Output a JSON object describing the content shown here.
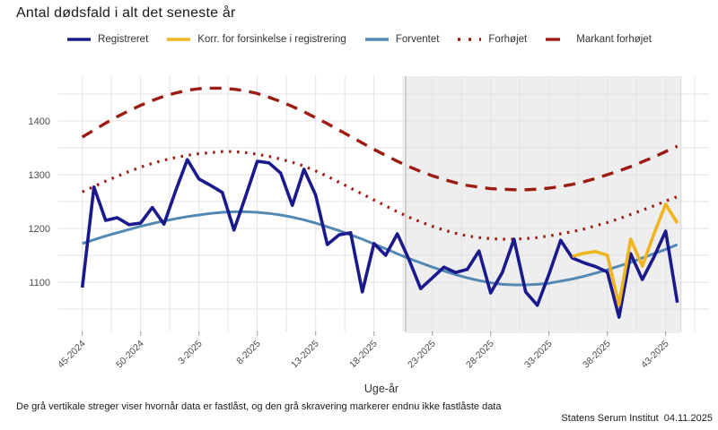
{
  "header": {
    "title": "Antal dødsfald i alt det seneste år"
  },
  "legend": {
    "items": [
      {
        "label": "Registreret",
        "color": "#1A1A8C",
        "style": "solid"
      },
      {
        "label": "Korr. for forsinkelse i registrering",
        "color": "#EFB41F",
        "style": "solid"
      },
      {
        "label": "Forventet",
        "color": "#5288B4",
        "style": "solid"
      },
      {
        "label": "Forhøjet",
        "color": "#9C1B12",
        "style": "dotted"
      },
      {
        "label": "Markant forhøjet",
        "color": "#9C1B12",
        "style": "dashed"
      }
    ]
  },
  "chart_data": {
    "type": "line",
    "title": "Antal dødsfald i alt det seneste år",
    "xlabel": "Uge-år",
    "ylabel": "",
    "ylim": [
      1008,
      1483
    ],
    "y_ticks": [
      1100,
      1200,
      1300,
      1400
    ],
    "grid": true,
    "legend_position": "top",
    "x_tick_labels": [
      "45-2024",
      "50-2024",
      "3-2025",
      "8-2025",
      "13-2025",
      "18-2025",
      "23-2025",
      "28-2025",
      "33-2025",
      "38-2025",
      "43-2025"
    ],
    "x_tick_indices": [
      0,
      5,
      10,
      15,
      20,
      25,
      30,
      35,
      40,
      45,
      50
    ],
    "weeks": [
      "45-2024",
      "46-2024",
      "47-2024",
      "48-2024",
      "49-2024",
      "50-2024",
      "51-2024",
      "52-2024",
      "1-2025",
      "2-2025",
      "3-2025",
      "4-2025",
      "5-2025",
      "6-2025",
      "7-2025",
      "8-2025",
      "9-2025",
      "10-2025",
      "11-2025",
      "12-2025",
      "13-2025",
      "14-2025",
      "15-2025",
      "16-2025",
      "17-2025",
      "18-2025",
      "19-2025",
      "20-2025",
      "21-2025",
      "22-2025",
      "23-2025",
      "24-2025",
      "25-2025",
      "26-2025",
      "27-2025",
      "28-2025",
      "29-2025",
      "30-2025",
      "31-2025",
      "32-2025",
      "33-2025",
      "34-2025",
      "35-2025",
      "36-2025",
      "37-2025",
      "38-2025",
      "39-2025",
      "40-2025",
      "41-2025",
      "42-2025",
      "43-2025",
      "44-2025"
    ],
    "series": [
      {
        "name": "Registreret",
        "color": "#1A1A8C",
        "style": "solid",
        "width": 3.6,
        "values": [
          1090,
          1277,
          1215,
          1220,
          1207,
          1210,
          1239,
          1208,
          1270,
          1328,
          1292,
          1280,
          1267,
          1197,
          1260,
          1325,
          1322,
          1303,
          1243,
          1310,
          1262,
          1170,
          1188,
          1192,
          1082,
          1172,
          1150,
          1190,
          1142,
          1088,
          1108,
          1128,
          1118,
          1124,
          1158,
          1080,
          1118,
          1180,
          1082,
          1057,
          1115,
          1178,
          1145,
          1136,
          1129,
          1119,
          1035,
          1153,
          1105,
          1147,
          1195,
          1062
        ]
      },
      {
        "name": "Korr. for forsinkelse i registrering",
        "color": "#EFB41F",
        "style": "solid",
        "width": 3.6,
        "values": [
          null,
          null,
          null,
          null,
          null,
          null,
          null,
          null,
          null,
          null,
          null,
          null,
          null,
          null,
          null,
          null,
          null,
          null,
          null,
          null,
          null,
          null,
          null,
          null,
          null,
          null,
          null,
          null,
          null,
          null,
          null,
          null,
          null,
          null,
          null,
          null,
          null,
          null,
          null,
          null,
          null,
          null,
          1148,
          1154,
          1157,
          1150,
          1058,
          1180,
          1130,
          1190,
          1245,
          1210
        ]
      },
      {
        "name": "Forventet",
        "color": "#5288B4",
        "style": "solid",
        "width": 3,
        "values": [
          1172,
          1179,
          1186,
          1192,
          1198,
          1204,
          1209,
          1214,
          1218,
          1222,
          1225,
          1228,
          1230,
          1231,
          1231,
          1230,
          1228,
          1225,
          1221,
          1216,
          1210,
          1203,
          1196,
          1188,
          1180,
          1171,
          1162,
          1153,
          1144,
          1136,
          1128,
          1121,
          1114,
          1108,
          1103,
          1099,
          1096,
          1095,
          1095,
          1096,
          1098,
          1102,
          1106,
          1111,
          1117,
          1123,
          1130,
          1137,
          1145,
          1153,
          1161,
          1170
        ]
      },
      {
        "name": "Forhøjet",
        "color": "#9C1B12",
        "style": "dotted",
        "width": 3.2,
        "values": [
          1268,
          1278,
          1288,
          1297,
          1306,
          1314,
          1321,
          1327,
          1332,
          1336,
          1339,
          1341,
          1343,
          1343,
          1341,
          1338,
          1334,
          1329,
          1323,
          1316,
          1307,
          1297,
          1286,
          1275,
          1264,
          1253,
          1242,
          1231,
          1221,
          1212,
          1204,
          1197,
          1191,
          1186,
          1183,
          1181,
          1180,
          1180,
          1181,
          1183,
          1186,
          1190,
          1194,
          1199,
          1205,
          1211,
          1218,
          1226,
          1234,
          1242,
          1251,
          1259
        ]
      },
      {
        "name": "Markant forhøjet",
        "color": "#9C1B12",
        "style": "dashed",
        "width": 3.4,
        "values": [
          1370,
          1383,
          1396,
          1408,
          1419,
          1429,
          1438,
          1446,
          1452,
          1457,
          1460,
          1461,
          1461,
          1459,
          1456,
          1451,
          1444,
          1436,
          1427,
          1417,
          1406,
          1395,
          1383,
          1371,
          1359,
          1347,
          1336,
          1325,
          1315,
          1306,
          1298,
          1291,
          1285,
          1280,
          1277,
          1274,
          1273,
          1272,
          1272,
          1273,
          1275,
          1278,
          1282,
          1287,
          1293,
          1300,
          1307,
          1315,
          1324,
          1333,
          1343,
          1353
        ]
      }
    ],
    "locked_region": {
      "start_week_index": 27.7,
      "end_week_index": 51.3,
      "note": "grå skravering = endnu ikke fastlåste data"
    }
  },
  "footer": {
    "note": "De grå vertikale streger viser hvornår data er fastlåst, og den grå skravering markerer endnu ikke fastlåste data",
    "source": "Statens Serum Institut  04.11.2025"
  }
}
